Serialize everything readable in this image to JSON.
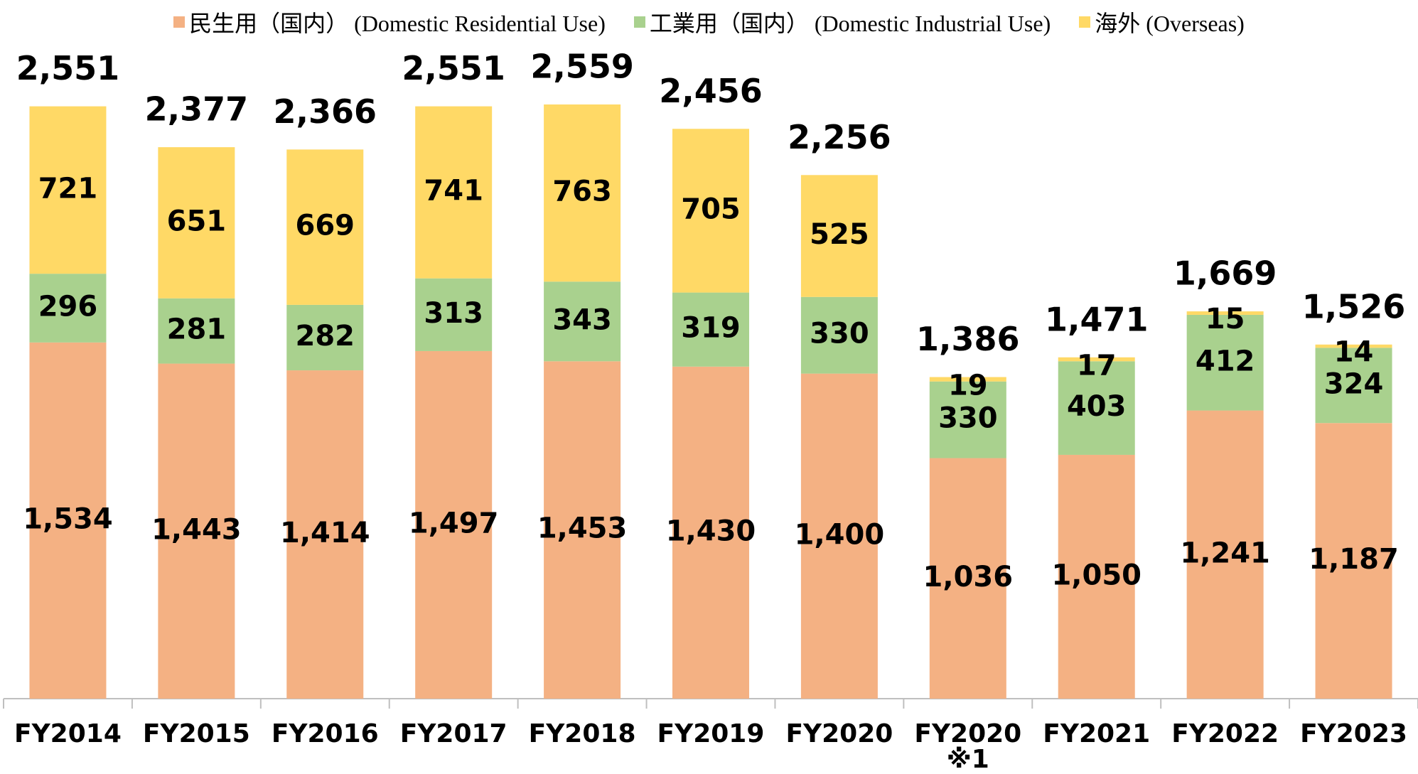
{
  "chart_data": {
    "type": "stacked_bar",
    "categories": [
      "FY2014",
      "FY2015",
      "FY2016",
      "FY2017",
      "FY2018",
      "FY2019",
      "FY2020",
      "FY2020\n※1",
      "FY2021",
      "FY2022",
      "FY2023"
    ],
    "series": [
      {
        "name": "民生用（国内） (Domestic Residential Use)",
        "color": "#f4b183",
        "values": [
          1534,
          1443,
          1414,
          1497,
          1453,
          1430,
          1400,
          1036,
          1050,
          1241,
          1187
        ],
        "value_labels": [
          "1,534",
          "1,443",
          "1,414",
          "1,497",
          "1,453",
          "1,430",
          "1,400",
          "1,036",
          "1,050",
          "1,241",
          "1,187"
        ]
      },
      {
        "name": "工業用（国内） (Domestic Industrial Use)",
        "color": "#a9d18e",
        "values": [
          296,
          281,
          282,
          313,
          343,
          319,
          330,
          330,
          403,
          412,
          324
        ]
      },
      {
        "name": "海外 (Overseas)",
        "color": "#ffd966",
        "values": [
          721,
          651,
          669,
          741,
          763,
          705,
          525,
          19,
          17,
          15,
          14
        ]
      }
    ],
    "totals": [
      2551,
      2377,
      2366,
      2551,
      2559,
      2456,
      2256,
      1386,
      1471,
      1669,
      1526
    ],
    "total_labels": [
      "2,551",
      "2,377",
      "2,366",
      "2,551",
      "2,559",
      "2,456",
      "2,256",
      "1,386",
      "1,471",
      "1,669",
      "1,526"
    ]
  }
}
